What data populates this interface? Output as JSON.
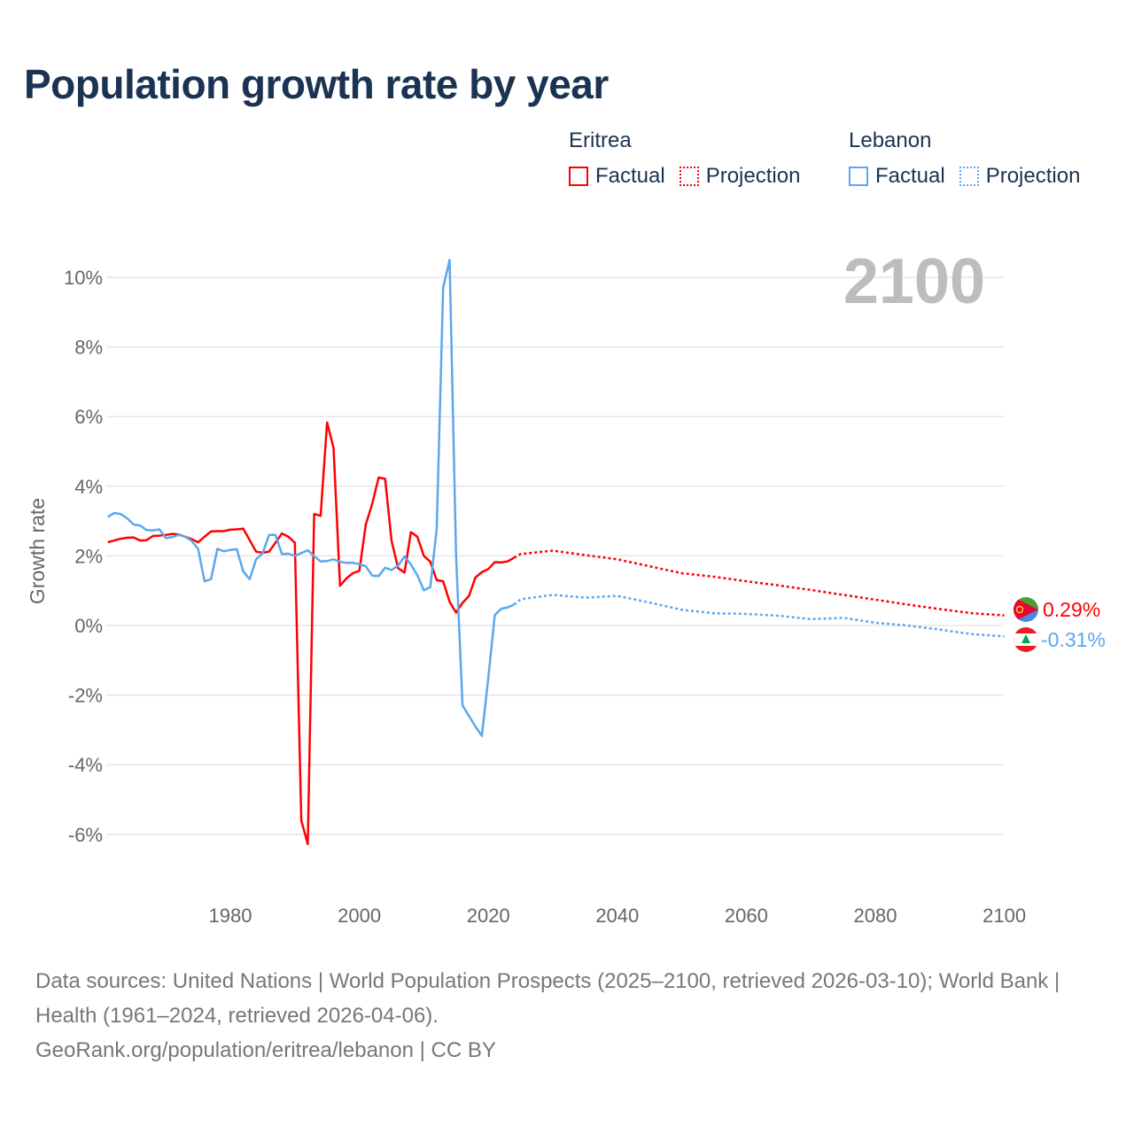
{
  "title": "Population growth rate by year",
  "legend": {
    "groups": [
      {
        "country": "Eritrea",
        "factual": "Factual",
        "projection": "Projection",
        "color": "#ff0000"
      },
      {
        "country": "Lebanon",
        "factual": "Factual",
        "projection": "Projection",
        "color": "#5ba7ee"
      }
    ]
  },
  "year_label": "2100",
  "footer": {
    "line1": "Data sources: United Nations | World Population Prospects (2025–2100, retrieved 2026-03-10); World Bank | Health (1961–2024, retrieved 2026-04-06).",
    "line2": "GeoRank.org/population/eritrea/lebanon | CC BY"
  },
  "chart_data": {
    "type": "line",
    "title": "Population growth rate by year",
    "xlabel": "",
    "ylabel": "Growth rate",
    "xlim": [
      1961,
      2100
    ],
    "ylim": [
      -7,
      11
    ],
    "xticks": [
      1980,
      2000,
      2020,
      2040,
      2060,
      2080,
      2100
    ],
    "xtick_labels": [
      "1980",
      "2000",
      "2020",
      "2040",
      "2060",
      "2080",
      "2100"
    ],
    "yticks": [
      -6,
      -4,
      -2,
      0,
      2,
      4,
      6,
      8,
      10
    ],
    "ytick_labels": [
      "-6%",
      "-4%",
      "-2%",
      "0%",
      "2%",
      "4%",
      "6%",
      "8%",
      "10%"
    ],
    "grid": true,
    "legend_position": "top-right",
    "series": [
      {
        "name": "Eritrea",
        "color": "#ff0000",
        "end_label": "0.29%",
        "factual": {
          "start_year": 1961,
          "values": [
            2.39,
            2.44,
            2.49,
            2.52,
            2.53,
            2.44,
            2.45,
            2.57,
            2.58,
            2.6,
            2.63,
            2.61,
            2.55,
            2.48,
            2.39,
            2.55,
            2.7,
            2.71,
            2.71,
            2.75,
            2.76,
            2.78,
            2.45,
            2.12,
            2.09,
            2.12,
            2.38,
            2.64,
            2.55,
            2.38,
            -5.6,
            -6.28,
            3.2,
            3.15,
            5.83,
            5.1,
            1.14,
            1.35,
            1.5,
            1.57,
            2.9,
            3.5,
            4.25,
            4.21,
            2.43,
            1.65,
            1.52,
            2.68,
            2.55,
            2.0,
            1.83,
            1.3,
            1.27,
            0.68,
            0.37,
            0.65,
            0.85,
            1.38,
            1.53,
            1.62,
            1.82,
            1.81,
            1.84,
            1.95
          ]
        },
        "projection": {
          "years": [
            2024,
            2025,
            2030,
            2035,
            2040,
            2045,
            2050,
            2055,
            2060,
            2065,
            2070,
            2075,
            2080,
            2085,
            2090,
            2095,
            2100
          ],
          "values": [
            1.95,
            2.05,
            2.15,
            2.02,
            1.9,
            1.7,
            1.5,
            1.4,
            1.27,
            1.15,
            1.02,
            0.88,
            0.74,
            0.6,
            0.47,
            0.35,
            0.29
          ]
        }
      },
      {
        "name": "Lebanon",
        "color": "#5ba7ee",
        "end_label": "-0.31%",
        "factual": {
          "start_year": 1961,
          "values": [
            3.12,
            3.23,
            3.2,
            3.08,
            2.9,
            2.87,
            2.74,
            2.73,
            2.76,
            2.51,
            2.54,
            2.6,
            2.55,
            2.43,
            2.2,
            1.27,
            1.33,
            2.2,
            2.13,
            2.17,
            2.19,
            1.55,
            1.33,
            1.9,
            2.07,
            2.6,
            2.6,
            2.05,
            2.06,
            2.0,
            2.08,
            2.16,
            1.99,
            1.84,
            1.85,
            1.9,
            1.83,
            1.8,
            1.8,
            1.76,
            1.7,
            1.43,
            1.42,
            1.66,
            1.59,
            1.72,
            1.98,
            1.75,
            1.44,
            1.01,
            1.1,
            2.8,
            9.7,
            10.5,
            2.0,
            -2.3,
            -2.6,
            -2.9,
            -3.17,
            -1.5,
            0.3,
            0.48,
            0.52,
            0.6
          ]
        },
        "projection": {
          "years": [
            2024,
            2025,
            2030,
            2035,
            2040,
            2045,
            2050,
            2055,
            2060,
            2065,
            2070,
            2075,
            2080,
            2085,
            2090,
            2095,
            2100
          ],
          "values": [
            0.6,
            0.75,
            0.88,
            0.8,
            0.85,
            0.66,
            0.45,
            0.35,
            0.33,
            0.28,
            0.18,
            0.22,
            0.08,
            0.0,
            -0.12,
            -0.25,
            -0.31
          ]
        }
      }
    ]
  }
}
